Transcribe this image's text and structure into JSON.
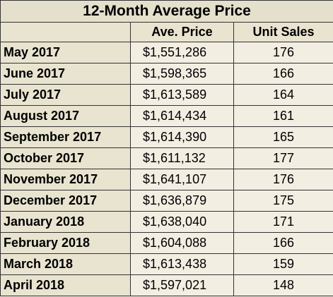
{
  "chart_data": {
    "type": "table",
    "title": "12-Month Average Price",
    "columns": [
      "",
      "Ave. Price",
      "Unit Sales"
    ],
    "rows": [
      {
        "month": "May 2017",
        "price": "$1,551,286",
        "units": "176"
      },
      {
        "month": "June 2017",
        "price": "$1,598,365",
        "units": "166"
      },
      {
        "month": "July 2017",
        "price": "$1,613,589",
        "units": "164"
      },
      {
        "month": "August 2017",
        "price": "$1,614,434",
        "units": "161"
      },
      {
        "month": "September 2017",
        "price": "$1,614,390",
        "units": "165"
      },
      {
        "month": "October 2017",
        "price": "$1,611,132",
        "units": "177"
      },
      {
        "month": "November 2017",
        "price": "$1,641,107",
        "units": "176"
      },
      {
        "month": "December 2017",
        "price": "$1,636,879",
        "units": "175"
      },
      {
        "month": "January 2018",
        "price": "$1,638,040",
        "units": "171"
      },
      {
        "month": "February 2018",
        "price": "$1,604,088",
        "units": "166"
      },
      {
        "month": "March 2018",
        "price": "$1,613,438",
        "units": "159"
      },
      {
        "month": "April 2018",
        "price": "$1,597,021",
        "units": "148"
      }
    ]
  }
}
